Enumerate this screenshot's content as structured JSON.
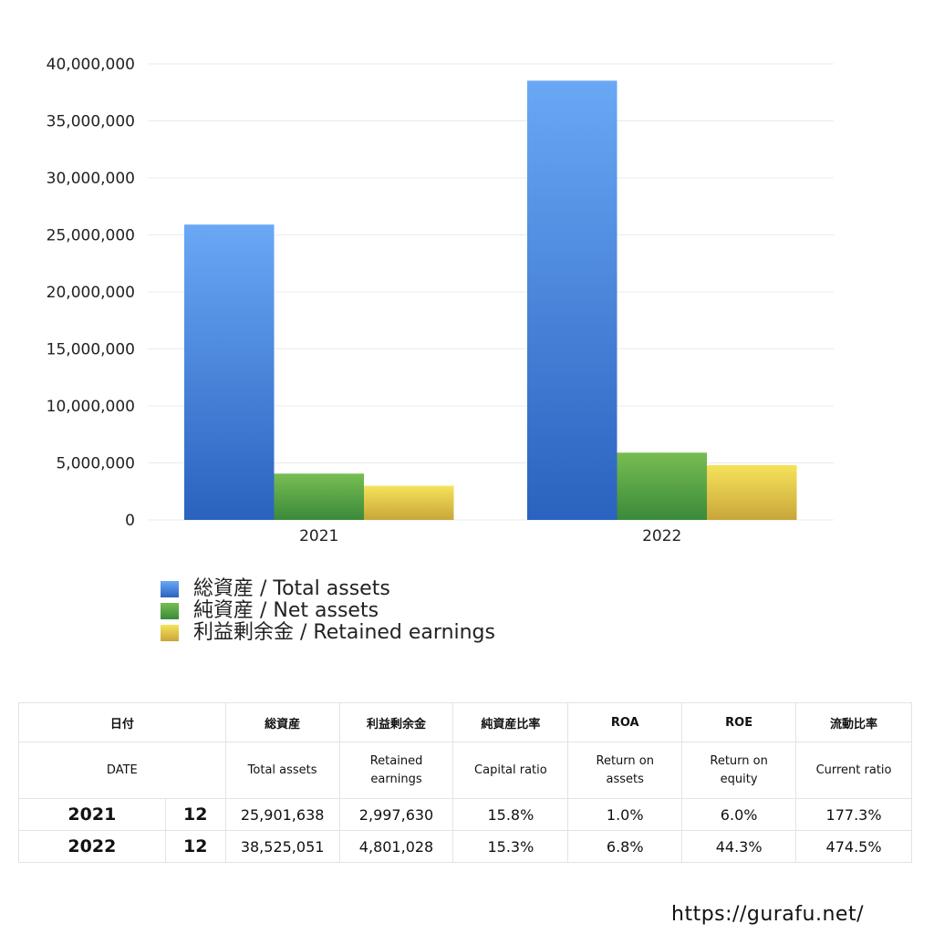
{
  "chart_data": {
    "type": "bar",
    "categories": [
      "2021",
      "2022"
    ],
    "series": [
      {
        "name": "総資産 / Total assets",
        "values": [
          25901638,
          38525051
        ],
        "color_top": "#6aa8f5",
        "color_bottom": "#2a62bf"
      },
      {
        "name": "純資産 / Net assets",
        "values": [
          4060000,
          5900000
        ],
        "color_top": "#78bd52",
        "color_bottom": "#3a8a3a"
      },
      {
        "name": "利益剰余金 / Retained earnings",
        "values": [
          2997630,
          4801028
        ],
        "color_top": "#f5e35a",
        "color_bottom": "#c9a63a"
      }
    ],
    "yticks": [
      "0",
      "5,000,000",
      "10,000,000",
      "15,000,000",
      "20,000,000",
      "25,000,000",
      "30,000,000",
      "35,000,000",
      "40,000,000"
    ],
    "ylim": [
      0,
      40000000
    ],
    "grid": true,
    "legend_position": "bottom-left"
  },
  "table": {
    "headers_jp": [
      "日付",
      "総資産",
      "利益剰余金",
      "純資産比率",
      "ROA",
      "ROE",
      "流動比率"
    ],
    "headers_en": [
      "DATE",
      "Total assets",
      "Retained earnings",
      "Capital ratio",
      "Return on assets",
      "Return on equity",
      "Current ratio"
    ],
    "rows": [
      {
        "year": "2021",
        "month": "12",
        "total_assets": "25,901,638",
        "retained_earnings": "2,997,630",
        "capital_ratio": "15.8%",
        "roa": "1.0%",
        "roe": "6.0%",
        "current_ratio": "177.3%"
      },
      {
        "year": "2022",
        "month": "12",
        "total_assets": "38,525,051",
        "retained_earnings": "4,801,028",
        "capital_ratio": "15.3%",
        "roa": "6.8%",
        "roe": "44.3%",
        "current_ratio": "474.5%"
      }
    ]
  },
  "footer": {
    "url": "https://gurafu.net/"
  }
}
